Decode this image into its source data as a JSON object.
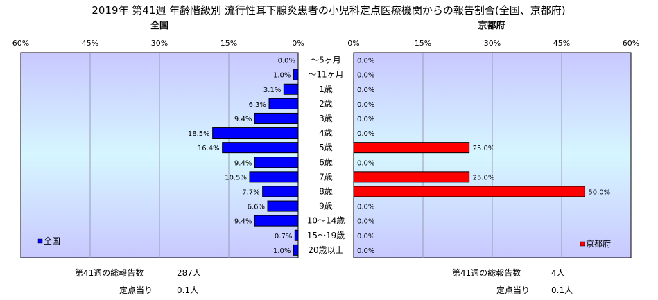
{
  "title": "2019年 第41週 年齢階級別 流行性耳下腺炎患者の小児科定点医療機関からの報告割合(全国、京都府)",
  "chart_data": {
    "type": "bar",
    "orientation": "horizontal",
    "title": "2019年 第41週 年齢階級別 流行性耳下腺炎患者の小児科定点医療機関からの報告割合(全国、京都府)",
    "categories": [
      "～5ヶ月",
      "～11ヶ月",
      "1歳",
      "2歳",
      "3歳",
      "4歳",
      "5歳",
      "6歳",
      "7歳",
      "8歳",
      "9歳",
      "10～14歳",
      "15～19歳",
      "20歳以上"
    ],
    "xlim": [
      0,
      60
    ],
    "tick_labels": [
      "0%",
      "15%",
      "30%",
      "45%",
      "60%"
    ],
    "series": [
      {
        "name": "全国",
        "panel_title": "全国",
        "color": "#0000ff",
        "values": [
          0.0,
          1.0,
          3.1,
          6.3,
          9.4,
          18.5,
          16.4,
          9.4,
          10.5,
          7.7,
          6.6,
          9.4,
          0.7,
          1.0
        ],
        "labels": [
          "0.0%",
          "1.0%",
          "3.1%",
          "6.3%",
          "9.4%",
          "18.5%",
          "16.4%",
          "9.4%",
          "10.5%",
          "7.7%",
          "6.6%",
          "9.4%",
          "0.7%",
          "1.0%"
        ]
      },
      {
        "name": "京都府",
        "panel_title": "京都府",
        "color": "#ff0000",
        "values": [
          0,
          0,
          0,
          0,
          0,
          0,
          25.0,
          0,
          25.0,
          50.0,
          0,
          0,
          0,
          0
        ],
        "labels": [
          "0.0%",
          "0.0%",
          "0.0%",
          "0.0%",
          "0.0%",
          "0.0%",
          "25.0%",
          "0.0%",
          "25.0%",
          "50.0%",
          "0.0%",
          "0.0%",
          "0.0%",
          "0.0%"
        ]
      }
    ],
    "grid": true,
    "legend": [
      "bottom-left",
      "bottom-right"
    ]
  },
  "footer": {
    "left": {
      "total_label": "第41週の総報告数",
      "total_value": "287人",
      "per_label": "定点当り",
      "per_value": "0.1人"
    },
    "right": {
      "total_label": "第41週の総報告数",
      "total_value": "4人",
      "per_label": "定点当り",
      "per_value": "0.1人"
    }
  }
}
